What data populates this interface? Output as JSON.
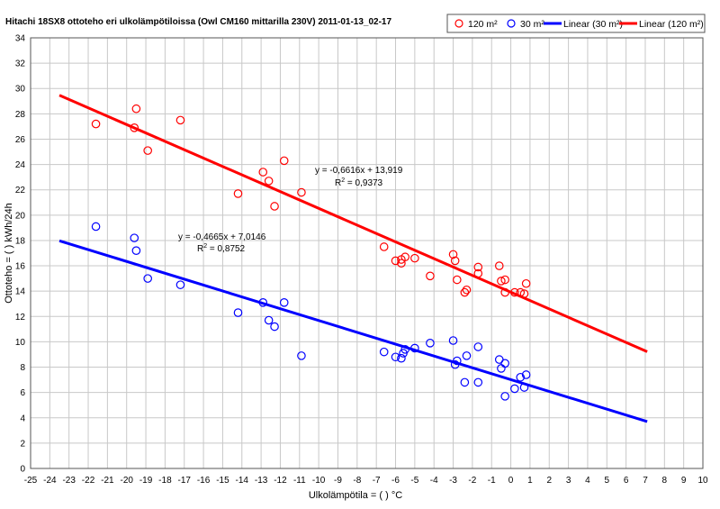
{
  "chart_data": {
    "type": "scatter",
    "title": "Hitachi 18SX8 ottoteho eri ulkolämpötiloissa (Owl CM160 mittarilla 230V) 2011-01-13_02-17",
    "xlabel": "Ulkolämpötila = ( ) °C",
    "ylabel": "Ottoteho = ( ) kWh/24h",
    "xlim": [
      -25,
      10
    ],
    "ylim": [
      0,
      34
    ],
    "xticks": [
      "-25",
      "-24",
      "-23",
      "-22",
      "-21",
      "-20",
      "-19",
      "-18",
      "-17",
      "-16",
      "-15",
      "-14",
      "-13",
      "-12",
      "-11",
      "-10",
      "-9",
      "-8",
      "-7",
      "-6",
      "-5",
      "-4",
      "-3",
      "-2",
      "-1",
      "0",
      "1",
      "2",
      "3",
      "4",
      "5",
      "6",
      "7",
      "8",
      "9",
      "10"
    ],
    "yticks": [
      "0",
      "2",
      "4",
      "6",
      "8",
      "10",
      "12",
      "14",
      "16",
      "18",
      "20",
      "22",
      "24",
      "26",
      "28",
      "30",
      "32",
      "34"
    ],
    "grid": true,
    "legend": {
      "position": "top-right",
      "entries": [
        {
          "label": "120 m²",
          "kind": "marker",
          "color": "#ff0000"
        },
        {
          "label": "30 m²",
          "kind": "marker",
          "color": "#0000ff"
        },
        {
          "label": "Linear (30 m²)",
          "kind": "line",
          "color": "#0000ff"
        },
        {
          "label": "Linear (120 m²)",
          "kind": "line",
          "color": "#ff0000"
        }
      ]
    },
    "series": [
      {
        "name": "120 m²",
        "color": "#ff0000",
        "points": [
          [
            -21.6,
            27.2
          ],
          [
            -19.5,
            28.4
          ],
          [
            -19.6,
            26.9
          ],
          [
            -18.9,
            25.1
          ],
          [
            -17.2,
            27.5
          ],
          [
            -14.2,
            21.7
          ],
          [
            -12.9,
            23.4
          ],
          [
            -12.6,
            22.7
          ],
          [
            -12.3,
            20.7
          ],
          [
            -11.8,
            24.3
          ],
          [
            -10.9,
            21.8
          ],
          [
            -6.6,
            17.5
          ],
          [
            -6.0,
            16.4
          ],
          [
            -5.7,
            16.2
          ],
          [
            -5.7,
            16.5
          ],
          [
            -5.5,
            16.7
          ],
          [
            -5.0,
            16.6
          ],
          [
            -4.2,
            15.2
          ],
          [
            -3.0,
            16.9
          ],
          [
            -2.9,
            16.4
          ],
          [
            -2.8,
            14.9
          ],
          [
            -2.4,
            13.9
          ],
          [
            -2.3,
            14.1
          ],
          [
            -1.7,
            15.9
          ],
          [
            -1.7,
            15.4
          ],
          [
            -0.6,
            16.0
          ],
          [
            -0.5,
            14.8
          ],
          [
            -0.3,
            14.9
          ],
          [
            -0.3,
            13.9
          ],
          [
            0.2,
            13.9
          ],
          [
            0.5,
            13.9
          ],
          [
            0.7,
            13.8
          ],
          [
            0.8,
            14.6
          ]
        ]
      },
      {
        "name": "30 m²",
        "color": "#0000ff",
        "points": [
          [
            -21.6,
            19.1
          ],
          [
            -19.6,
            18.2
          ],
          [
            -19.5,
            17.2
          ],
          [
            -18.9,
            15.0
          ],
          [
            -17.2,
            14.5
          ],
          [
            -14.2,
            12.3
          ],
          [
            -12.9,
            13.1
          ],
          [
            -12.6,
            11.7
          ],
          [
            -12.3,
            11.2
          ],
          [
            -11.8,
            13.1
          ],
          [
            -10.9,
            8.9
          ],
          [
            -6.6,
            9.2
          ],
          [
            -6.0,
            8.8
          ],
          [
            -5.7,
            8.7
          ],
          [
            -5.6,
            9.1
          ],
          [
            -5.5,
            9.4
          ],
          [
            -5.0,
            9.5
          ],
          [
            -4.2,
            9.9
          ],
          [
            -3.0,
            10.1
          ],
          [
            -2.9,
            8.2
          ],
          [
            -2.8,
            8.5
          ],
          [
            -2.4,
            6.8
          ],
          [
            -2.3,
            8.9
          ],
          [
            -1.7,
            9.6
          ],
          [
            -1.7,
            6.8
          ],
          [
            -0.6,
            8.6
          ],
          [
            -0.5,
            7.9
          ],
          [
            -0.3,
            8.3
          ],
          [
            -0.3,
            5.7
          ],
          [
            0.2,
            6.3
          ],
          [
            0.5,
            7.2
          ],
          [
            0.7,
            6.4
          ],
          [
            0.8,
            7.4
          ]
        ]
      }
    ],
    "trendlines": [
      {
        "name": "Linear (30 m²)",
        "color": "#0000ff",
        "slope": -0.4665,
        "intercept": 7.0146,
        "x_range": [
          -23.5,
          7.1
        ]
      },
      {
        "name": "Linear (120 m²)",
        "color": "#ff0000",
        "slope": -0.6616,
        "intercept": 13.919,
        "x_range": [
          -23.5,
          7.1
        ]
      }
    ],
    "annotations": [
      {
        "equation": "y = -0,6616x + 13,919",
        "r2_prefix": "R",
        "r2_exp": "2",
        "r2_value": " = 0,9373"
      },
      {
        "equation": "y = -0,4665x + 7,0146",
        "r2_prefix": "R",
        "r2_exp": "2",
        "r2_value": " = 0,8752"
      }
    ]
  }
}
